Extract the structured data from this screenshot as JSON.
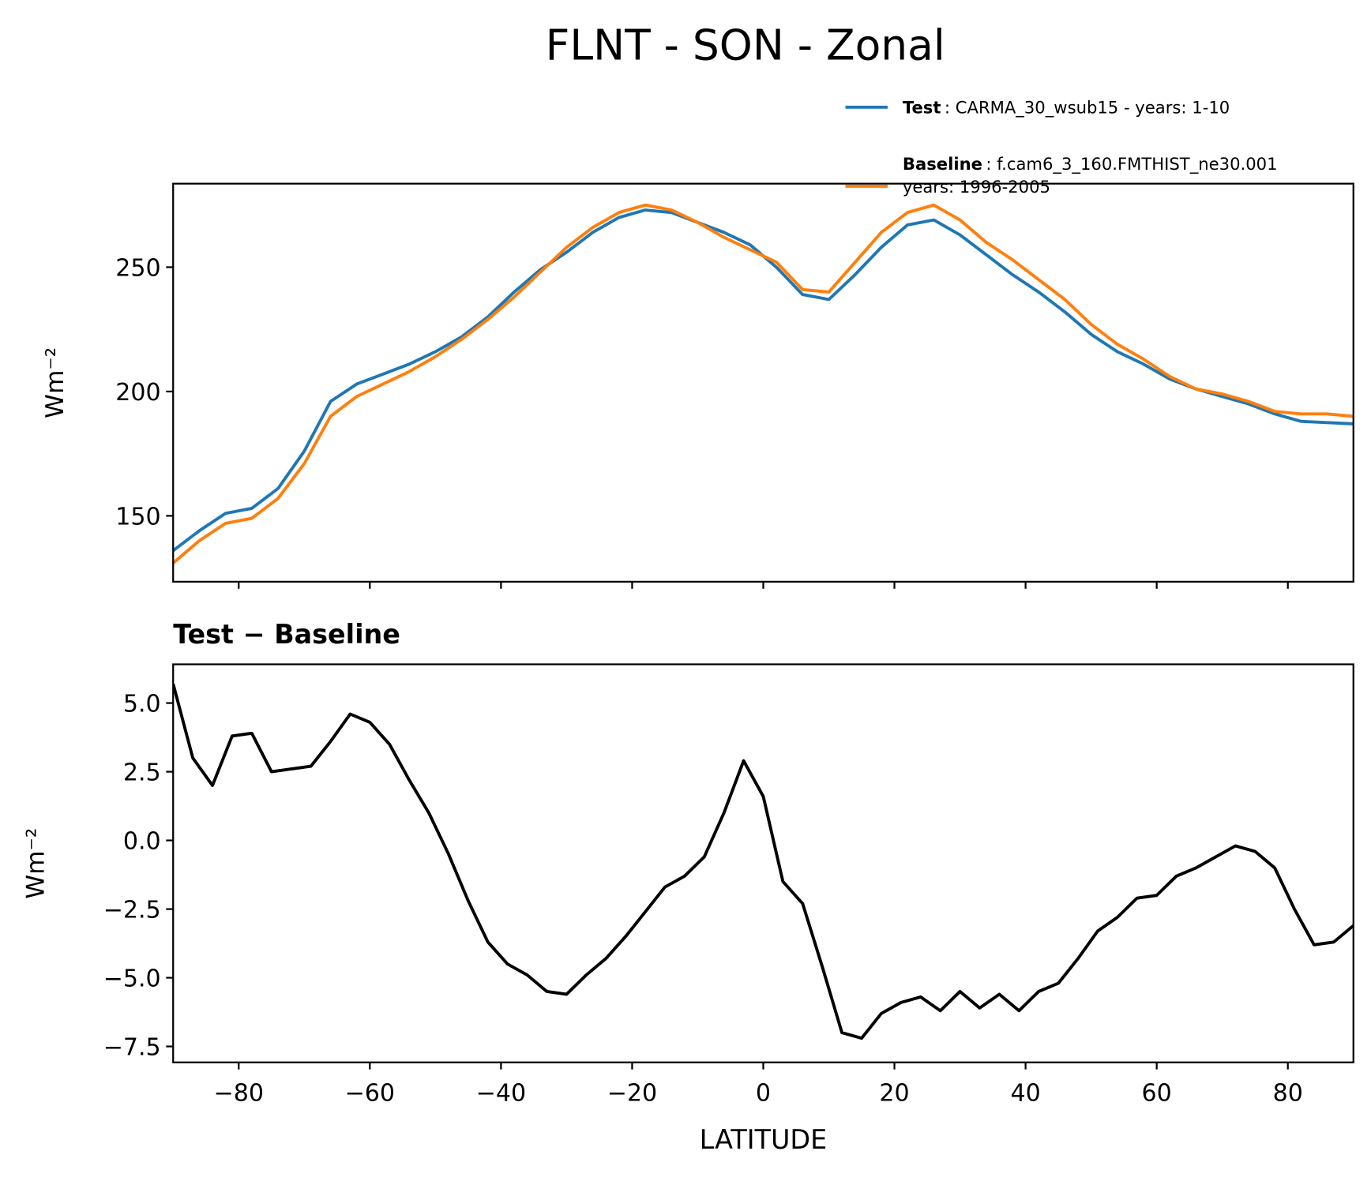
{
  "chart_data": [
    {
      "type": "line",
      "title": "FLNT - SON - Zonal",
      "ylabel": "Wm⁻²",
      "x": [
        -90,
        -86,
        -82,
        -78,
        -74,
        -70,
        -66,
        -62,
        -58,
        -54,
        -50,
        -46,
        -42,
        -38,
        -34,
        -30,
        -26,
        -22,
        -18,
        -14,
        -10,
        -6,
        -2,
        2,
        6,
        10,
        14,
        18,
        22,
        26,
        30,
        34,
        38,
        42,
        46,
        50,
        54,
        58,
        62,
        66,
        70,
        74,
        78,
        82,
        86,
        90
      ],
      "series": [
        {
          "name": "Test",
          "description": [
            ": CARMA_30_wsub15 - years: 1-10"
          ],
          "color": "#1f77b4",
          "values": [
            136,
            144,
            151,
            153,
            161,
            176,
            196,
            203,
            207,
            211,
            216,
            222,
            230,
            240,
            249,
            256,
            264,
            270,
            273,
            272,
            268,
            264,
            259,
            250,
            239,
            237,
            247,
            258,
            267,
            269,
            263,
            255,
            247,
            240,
            232,
            223,
            216,
            211,
            205,
            201,
            198,
            195,
            191,
            188,
            187.5,
            187
          ]
        },
        {
          "name": "Baseline",
          "description": [
            ": f.cam6_3_160.FMTHIST_ne30.001",
            "years: 1996-2005"
          ],
          "color": "#ff7f0e",
          "values": [
            131,
            140,
            147,
            149,
            157,
            171,
            190,
            198,
            203,
            208,
            214,
            221,
            229,
            238,
            248,
            258,
            266,
            272,
            275,
            273,
            268,
            262,
            257,
            252,
            241,
            240,
            252,
            264,
            272,
            275,
            269,
            260,
            253,
            245,
            237,
            227,
            219,
            213,
            206,
            201,
            199,
            196,
            192,
            191,
            191,
            190
          ]
        }
      ],
      "xlim": [
        -90,
        90
      ],
      "xticks": [
        -80,
        -60,
        -40,
        -20,
        0,
        20,
        40,
        60,
        80
      ],
      "ylim": [
        123.5,
        283.6
      ],
      "yticks": [
        150,
        200,
        250
      ],
      "legend": "upper right"
    },
    {
      "type": "line",
      "subtitle": "Test − Baseline",
      "ylabel": "Wm⁻²",
      "xlabel": "LATITUDE",
      "x": [
        -90,
        -87,
        -84,
        -81,
        -78,
        -75,
        -72,
        -69,
        -66,
        -63,
        -60,
        -57,
        -54,
        -51,
        -48,
        -45,
        -42,
        -39,
        -36,
        -33,
        -30,
        -27,
        -24,
        -21,
        -18,
        -15,
        -12,
        -9,
        -6,
        -3,
        0,
        3,
        6,
        9,
        12,
        15,
        18,
        21,
        24,
        27,
        30,
        33,
        36,
        39,
        42,
        45,
        48,
        51,
        54,
        57,
        60,
        63,
        66,
        69,
        72,
        75,
        78,
        81,
        84,
        87,
        90
      ],
      "series": [
        {
          "color": "#000000",
          "values": [
            5.7,
            3.0,
            2.0,
            3.8,
            3.9,
            2.5,
            2.6,
            2.7,
            3.6,
            4.6,
            4.3,
            3.5,
            2.2,
            1.0,
            -0.5,
            -2.2,
            -3.7,
            -4.5,
            -4.9,
            -5.5,
            -5.6,
            -4.9,
            -4.3,
            -3.5,
            -2.6,
            -1.7,
            -1.3,
            -0.6,
            1.0,
            2.9,
            1.6,
            -1.5,
            -2.3,
            -4.6,
            -7.0,
            -7.2,
            -6.3,
            -5.9,
            -5.7,
            -6.2,
            -5.5,
            -6.1,
            -5.6,
            -6.2,
            -5.5,
            -5.2,
            -4.3,
            -3.3,
            -2.8,
            -2.1,
            -2.0,
            -1.3,
            -1.0,
            -0.6,
            -0.2,
            -0.4,
            -1.0,
            -2.5,
            -3.8,
            -3.7,
            -3.1
          ]
        }
      ],
      "xlim": [
        -90,
        90
      ],
      "xticks": [
        {
          "value": -80,
          "label": "−80"
        },
        {
          "value": -60,
          "label": "−60"
        },
        {
          "value": -40,
          "label": "−40"
        },
        {
          "value": -20,
          "label": "−20"
        },
        0,
        20,
        40,
        60,
        80
      ],
      "ylim": [
        -8.08,
        6.41
      ],
      "yticks": [
        {
          "value": 5,
          "label": "5.0"
        },
        {
          "value": 2.5,
          "label": "2.5"
        },
        {
          "value": 0,
          "label": "0.0"
        },
        {
          "value": -2.5,
          "label": "−2.5"
        },
        {
          "value": -5,
          "label": "−5.0"
        },
        {
          "value": -7.5,
          "label": "−7.5"
        }
      ]
    }
  ]
}
